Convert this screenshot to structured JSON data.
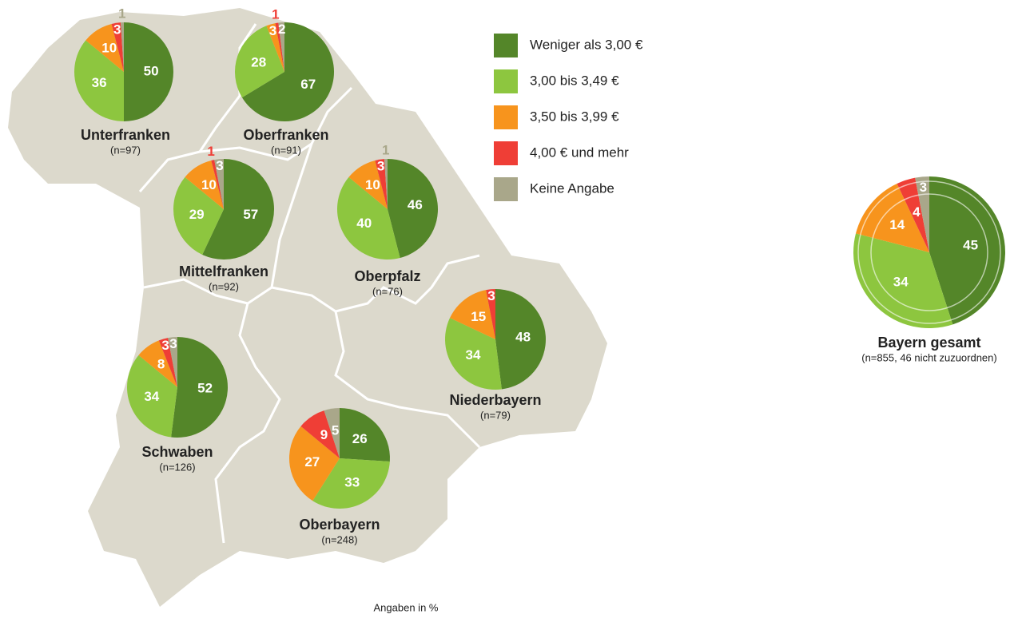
{
  "legend": [
    {
      "name": "Weniger als 3,00 €",
      "color": "#548629"
    },
    {
      "name": "3,00 bis 3,49 €",
      "color": "#8dc63f"
    },
    {
      "name": "3,50 bis 3,99 €",
      "color": "#f7941d"
    },
    {
      "name": "4,00 € und mehr",
      "color": "#ef3e36"
    },
    {
      "name": "Keine Angabe",
      "color": "#a9a78a"
    }
  ],
  "note": "Angaben in %",
  "chart_data": [
    {
      "type": "pie",
      "title": "Unterfranken",
      "subtitle": "(n=97)",
      "values": [
        50,
        36,
        10,
        3,
        1
      ]
    },
    {
      "type": "pie",
      "title": "Oberfranken",
      "subtitle": "(n=91)",
      "values": [
        67,
        28,
        3,
        1,
        2
      ]
    },
    {
      "type": "pie",
      "title": "Mittelfranken",
      "subtitle": "(n=92)",
      "values": [
        57,
        29,
        10,
        1,
        3
      ]
    },
    {
      "type": "pie",
      "title": "Oberpfalz",
      "subtitle": "(n=76)",
      "values": [
        46,
        40,
        10,
        3,
        1
      ]
    },
    {
      "type": "pie",
      "title": "Schwaben",
      "subtitle": "(n=126)",
      "values": [
        52,
        34,
        8,
        3,
        3
      ]
    },
    {
      "type": "pie",
      "title": "Oberbayern",
      "subtitle": "(n=248)",
      "values": [
        26,
        33,
        27,
        9,
        5
      ]
    },
    {
      "type": "pie",
      "title": "Niederbayern",
      "subtitle": "(n=79)",
      "values": [
        48,
        34,
        15,
        3
      ]
    },
    {
      "type": "pie",
      "title": "Bayern gesamt",
      "subtitle": "(n=855, 46 nicht zuzuordnen)",
      "values": [
        45,
        34,
        14,
        4,
        3
      ]
    }
  ]
}
